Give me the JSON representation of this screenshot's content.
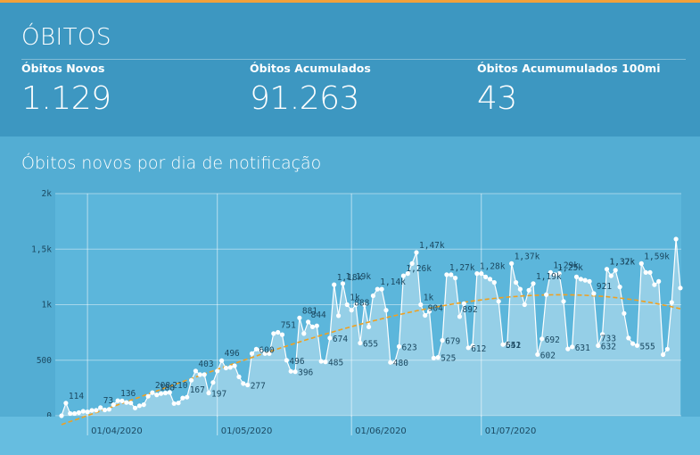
{
  "header": {
    "title": "ÓBITOS",
    "kpis": [
      {
        "label": "Óbitos Novos",
        "value": "1.129"
      },
      {
        "label": "Óbitos Acumulados",
        "value": "91.263"
      },
      {
        "label": "Óbitos Acumumulados 100mi",
        "value": "43"
      }
    ]
  },
  "colors": {
    "header_bg": "#3d97c1",
    "body_bg": "#53add3",
    "accent": "#f2a13a",
    "line": "#ffffff",
    "trend": "#f0a020"
  },
  "chart": {
    "title": "Óbitos novos por dia de notificação"
  },
  "chart_data": {
    "type": "line",
    "title": "Óbitos novos por dia de notificação",
    "xlabel": "",
    "ylabel": "",
    "ylim": [
      0,
      2000
    ],
    "yticks": [
      "0",
      "500",
      "1k",
      "1,5k",
      "2k"
    ],
    "x_tick_labels": [
      "01/04/2020",
      "01/05/2020",
      "01/06/2020",
      "01/07/2020"
    ],
    "grid": true,
    "series": [
      {
        "values": [
          0,
          114,
          20,
          20,
          28,
          40,
          35,
          48,
          50,
          73,
          52,
          58,
          100,
          136,
          133,
          120,
          115,
          70,
          90,
          100,
          175,
          208,
          188,
          200,
          205,
          210,
          110,
          115,
          160,
          167,
          320,
          403,
          370,
          370,
          205,
          300,
          403,
          496,
          430,
          435,
          450,
          350,
          290,
          277,
          560,
          600,
          590,
          560,
          560,
          740,
          751,
          730,
          500,
          400,
          396,
          881,
          740,
          844,
          800,
          810,
          490,
          485,
          700,
          1180,
          900,
          1190,
          1000,
          950,
          1000,
          655,
          1000,
          800,
          1080,
          1140,
          1140,
          950,
          480,
          480,
          623,
          1260,
          1280,
          1370,
          1470,
          1000,
          904,
          940,
          520,
          525,
          679,
          1270,
          1270,
          1240,
          892,
          1010,
          612,
          630,
          1280,
          1280,
          1250,
          1230,
          1200,
          1030,
          641,
          650,
          1370,
          1200,
          1140,
          1000,
          1130,
          1190,
          552,
          692,
          1090,
          1290,
          1270,
          1280,
          1030,
          602,
          620,
          1250,
          1230,
          1220,
          1210,
          1100,
          631,
          733,
          1320,
          1260,
          1310,
          1160,
          921,
          700,
          650,
          632,
          1370,
          1290,
          1290,
          1180,
          1210,
          550,
          600,
          1020,
          1590,
          1150
        ]
      }
    ],
    "data_labels": [
      "114",
      "73",
      "136",
      "208",
      "188",
      "210",
      "167",
      "403",
      "496",
      "197",
      "600",
      "277",
      "751",
      "496",
      "881",
      "396",
      "844",
      "1,18k",
      "485",
      "674",
      "1,19k",
      "1k",
      "655",
      "1,14k",
      "888",
      "1,26k",
      "480",
      "623",
      "1,47k",
      "904",
      "1k",
      "525",
      "679",
      "1,27k",
      "892",
      "612",
      "1,28k",
      "641",
      "1,37k",
      "1,19k",
      "552",
      "692",
      "1,29k",
      "602",
      "1,25k",
      "631",
      "733",
      "1,32k",
      "921",
      "632",
      "1,37k",
      "555",
      "1,59k"
    ],
    "trend_line": {
      "type": "polynomial",
      "color": "#f0a020"
    }
  }
}
